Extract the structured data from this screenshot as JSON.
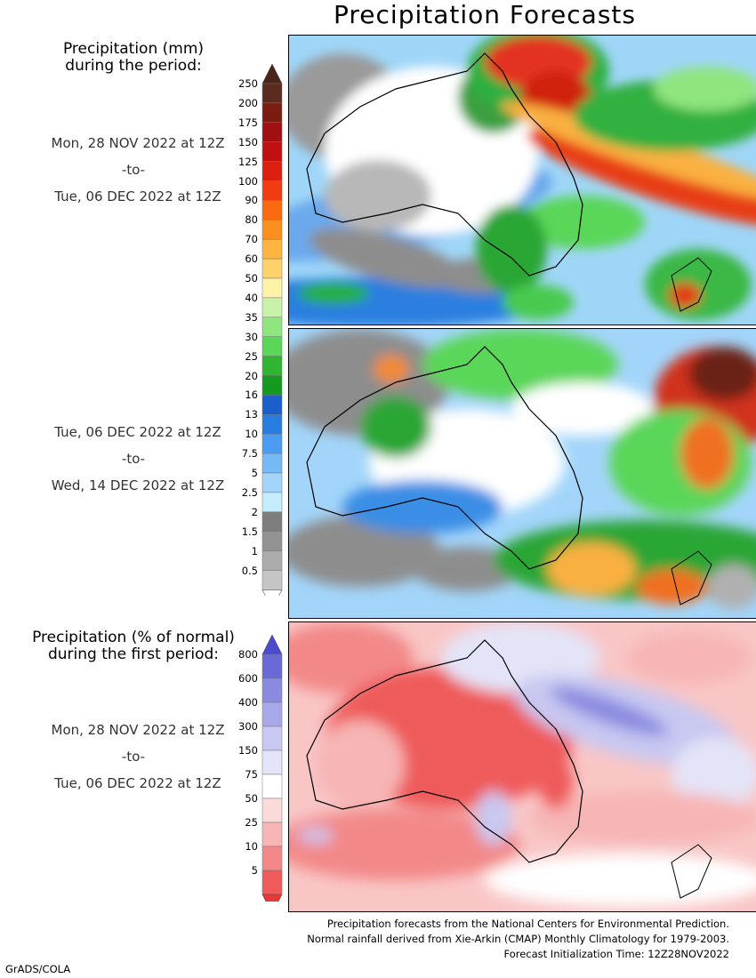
{
  "title": "Precipitation Forecasts",
  "left_header_1": [
    "Precipitation (mm)",
    "during the period:"
  ],
  "left_header_2": [
    "Precipitation (% of normal)",
    "during the first period:"
  ],
  "period1": {
    "start": "Mon, 28 NOV 2022 at 12Z",
    "sep": "-to-",
    "end": "Tue, 06 DEC 2022 at 12Z"
  },
  "period2": {
    "start": "Tue, 06 DEC 2022 at 12Z",
    "sep": "-to-",
    "end": "Wed, 14 DEC 2022 at 12Z"
  },
  "period3": {
    "start": "Mon, 28 NOV 2022 at 12Z",
    "sep": "-to-",
    "end": "Tue, 06 DEC 2022 at 12Z"
  },
  "colorbar_mm": {
    "labels": [
      "250",
      "200",
      "175",
      "150",
      "125",
      "100",
      "90",
      "80",
      "70",
      "60",
      "50",
      "40",
      "35",
      "30",
      "25",
      "20",
      "16",
      "13",
      "10",
      "7.5",
      "5",
      "2.5",
      "2",
      "1.5",
      "1",
      "0.5"
    ],
    "colors": [
      "#5a2b1e",
      "#7a1d10",
      "#a01010",
      "#c01010",
      "#dd1f10",
      "#f03c10",
      "#fa6a10",
      "#fb9020",
      "#fcb540",
      "#fdd26a",
      "#fef3a6",
      "#c8f2a8",
      "#8fe57e",
      "#5ad659",
      "#2fb532",
      "#149a1e",
      "#1b5fcc",
      "#2a7de0",
      "#4b9cf0",
      "#75b9f5",
      "#a3d5fa",
      "#c4ecfd",
      "#7d7d7d",
      "#939393",
      "#acacac",
      "#c5c5c5"
    ],
    "top_arrow_color": "#4a2418",
    "bottom_arrow_color": "#ffffff"
  },
  "colorbar_pct": {
    "labels": [
      "800",
      "600",
      "400",
      "300",
      "150",
      "75",
      "50",
      "25",
      "10",
      "5"
    ],
    "colors": [
      "#6a6ad6",
      "#8a8ae0",
      "#a8a8ea",
      "#c8c8f2",
      "#e4e4f8",
      "#ffffff",
      "#fbdada",
      "#f7b5b5",
      "#f38888",
      "#ef5a5a"
    ],
    "top_arrow_color": "#4a4acc",
    "bottom_arrow_color": "#e83838"
  },
  "footer": [
    "Precipitation forecasts from the National Centers for Environmental Prediction.",
    "Normal rainfall derived from Xie-Arkin (CMAP) Monthly Climatology for 1979-2003.",
    "Forecast Initialization Time: 12Z28NOV2022"
  ],
  "credit": "GrADS/COLA"
}
